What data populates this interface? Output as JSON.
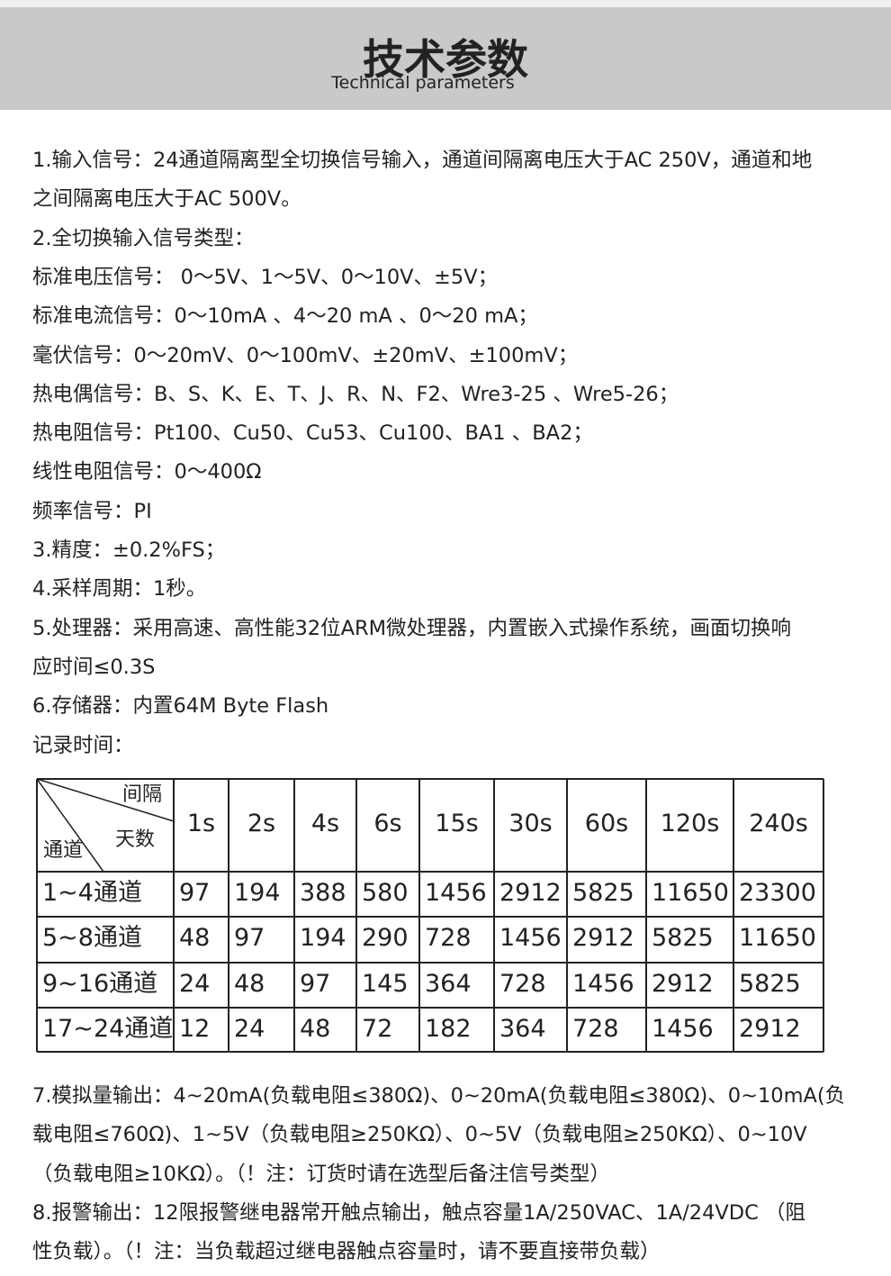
{
  "header": {
    "title": "技术参数",
    "subtitle": "Technical parameters"
  },
  "lines_before": [
    "1.输入信号：24通道隔离型全切换信号输入，通道间隔离电压大于AC 250V，通道和地",
    "之间隔离电压大于AC 500V。",
    "2.全切换输入信号类型：",
    "标准电压信号： 0～5V、1～5V、0～10V、±5V；",
    "标准电流信号：0～10mA 、4～20 mA 、0～20 mA；",
    "毫伏信号：0～20mV、0～100mV、±20mV、±100mV；",
    "热电偶信号：B、S、K、E、T、J、R、N、F2、Wre3-25 、Wre5-26；",
    "热电阻信号：Pt100、Cu50、Cu53、Cu100、BA1 、BA2；",
    "线性电阻信号：0～400Ω",
    "频率信号：PI",
    "3.精度：±0.2%FS；",
    "4.采样周期：1秒。",
    "5.处理器：采用高速、高性能32位ARM微处理器，内置嵌入式操作系统，画面切换响",
    "应时间≤0.3S",
    "6.存储器：内置64M Byte Flash",
    "记录时间："
  ],
  "table": {
    "corner": {
      "top": "间隔",
      "middle": "天数",
      "bottom": "通道"
    },
    "columns": [
      "1s",
      "2s",
      "4s",
      "6s",
      "15s",
      "30s",
      "60s",
      "120s",
      "240s"
    ],
    "rows": [
      [
        "1~4通道",
        97,
        194,
        388,
        580,
        1456,
        2912,
        5825,
        11650,
        23300
      ],
      [
        "5~8通道",
        48,
        97,
        194,
        290,
        728,
        1456,
        2912,
        5825,
        11650
      ],
      [
        "9~16通道",
        24,
        48,
        97,
        145,
        364,
        728,
        1456,
        2912,
        5825
      ],
      [
        "17~24通道",
        12,
        24,
        48,
        72,
        182,
        364,
        728,
        1456,
        2912
      ]
    ]
  },
  "lines_after": [
    "7.模拟量输出：4~20mA(负载电阻≤380Ω)、0~20mA(负载电阻≤380Ω)、0~10mA(负",
    "载电阻≤760Ω)、1~5V（负载电阻≥250KΩ）、0~5V（负载电阻≥250KΩ）、0~10V",
    "（负载电阻≥10KΩ）。（！注：订货时请在选型后备注信号类型）",
    "8.报警输出：12限报警继电器常开触点输出，触点容量1A/250VAC、1A/24VDC （阻",
    "性负载）。（！注：当负载超过继电器触点容量时，请不要直接带负载）"
  ]
}
